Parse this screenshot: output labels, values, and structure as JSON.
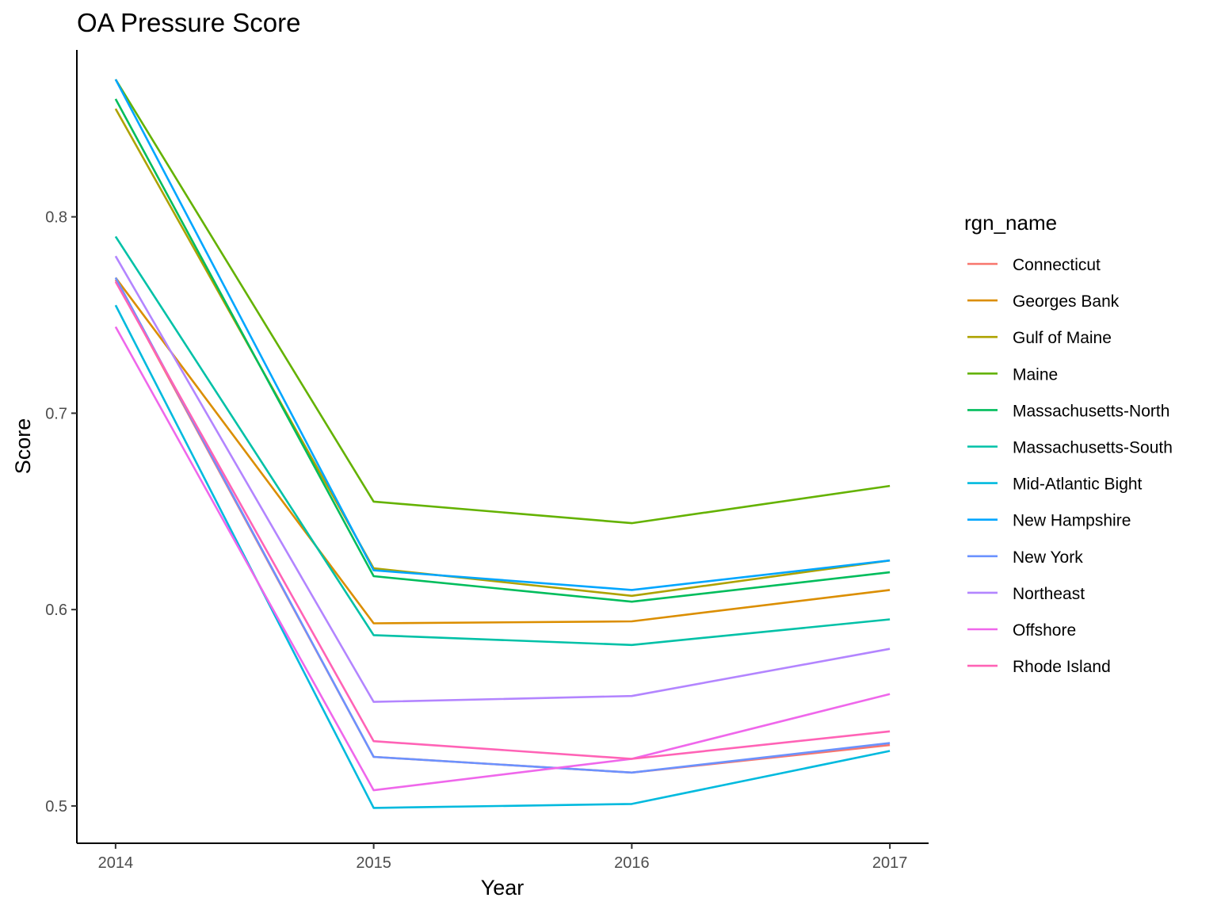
{
  "chart_data": {
    "type": "line",
    "title": "OA Pressure Score",
    "xlabel": "Year",
    "ylabel": "Score",
    "x": [
      2014,
      2015,
      2016,
      2017
    ],
    "x_tick_labels": [
      "2014",
      "2015",
      "2016",
      "2017"
    ],
    "y_ticks": [
      0.5,
      0.6,
      0.7,
      0.8
    ],
    "y_tick_labels": [
      "0.5",
      "0.6",
      "0.7",
      "0.8"
    ],
    "xlim": [
      2013.85,
      2017.15
    ],
    "ylim": [
      0.481,
      0.885
    ],
    "grid": false,
    "legend": {
      "title": "rgn_name",
      "position": "right"
    },
    "series": [
      {
        "name": "Connecticut",
        "color": "#F8766D",
        "values": [
          0.768,
          0.525,
          0.517,
          0.531
        ]
      },
      {
        "name": "Georges Bank",
        "color": "#DB8E00",
        "values": [
          0.769,
          0.593,
          0.594,
          0.61
        ]
      },
      {
        "name": "Gulf of Maine",
        "color": "#AEA200",
        "values": [
          0.855,
          0.621,
          0.607,
          0.625
        ]
      },
      {
        "name": "Maine",
        "color": "#64B200",
        "values": [
          0.87,
          0.655,
          0.644,
          0.663
        ]
      },
      {
        "name": "Massachusetts-North",
        "color": "#00BD5C",
        "values": [
          0.86,
          0.617,
          0.604,
          0.619
        ]
      },
      {
        "name": "Massachusetts-South",
        "color": "#00C1A7",
        "values": [
          0.79,
          0.587,
          0.582,
          0.595
        ]
      },
      {
        "name": "Mid-Atlantic Bight",
        "color": "#00BADE",
        "values": [
          0.755,
          0.499,
          0.501,
          0.528
        ]
      },
      {
        "name": "New Hampshire",
        "color": "#00A6FF",
        "values": [
          0.87,
          0.62,
          0.61,
          0.625
        ]
      },
      {
        "name": "New York",
        "color": "#6B92FF",
        "values": [
          0.769,
          0.525,
          0.517,
          0.532
        ]
      },
      {
        "name": "Northeast",
        "color": "#B385FF",
        "values": [
          0.78,
          0.553,
          0.556,
          0.58
        ]
      },
      {
        "name": "Offshore",
        "color": "#EF67EB",
        "values": [
          0.744,
          0.508,
          0.524,
          0.557
        ]
      },
      {
        "name": "Rhode Island",
        "color": "#FF63B6",
        "values": [
          0.767,
          0.533,
          0.524,
          0.538
        ]
      }
    ]
  }
}
